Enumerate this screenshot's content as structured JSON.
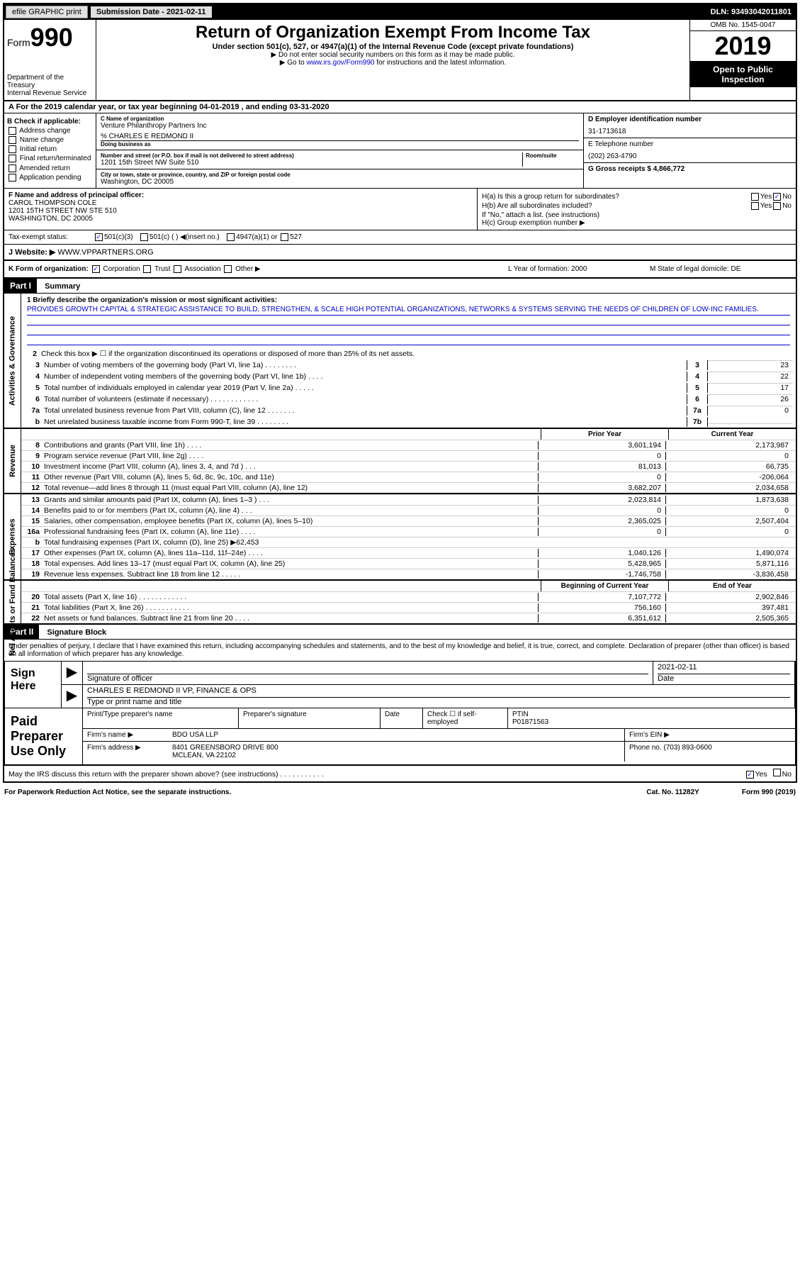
{
  "top_bar": {
    "efile": "efile GRAPHIC print",
    "submission_label": "Submission Date - 2021-02-11",
    "dln": "DLN: 93493042011801"
  },
  "header": {
    "form_label": "Form",
    "form_num": "990",
    "dept": "Department of the Treasury",
    "irs": "Internal Revenue Service",
    "title": "Return of Organization Exempt From Income Tax",
    "subtitle": "Under section 501(c), 527, or 4947(a)(1) of the Internal Revenue Code (except private foundations)",
    "note1": "▶ Do not enter social security numbers on this form as it may be made public.",
    "note2_pre": "▶ Go to ",
    "note2_link": "www.irs.gov/Form990",
    "note2_post": " for instructions and the latest information.",
    "omb": "OMB No. 1545-0047",
    "year": "2019",
    "open": "Open to Public Inspection"
  },
  "line_a": "A For the 2019 calendar year, or tax year beginning 04-01-2019   , and ending 03-31-2020",
  "box_b": {
    "label": "B Check if applicable:",
    "items": [
      "Address change",
      "Name change",
      "Initial return",
      "Final return/terminated",
      "Amended return",
      "Application pending"
    ]
  },
  "box_c": {
    "label_name": "C Name of organization",
    "org_name": "Venture Philanthropy Partners Inc",
    "care_of": "% CHARLES E REDMOND II",
    "dba_label": "Doing business as",
    "addr_label": "Number and street (or P.O. box if mail is not delivered to street address)",
    "room_label": "Room/suite",
    "address": "1201 15th Street NW Suite 510",
    "city_label": "City or town, state or province, country, and ZIP or foreign postal code",
    "city": "Washington, DC  20005"
  },
  "box_d": {
    "label": "D Employer identification number",
    "value": "31-1713618"
  },
  "box_e": {
    "label": "E Telephone number",
    "value": "(202) 263-4790"
  },
  "box_g": {
    "label": "G Gross receipts $ 4,866,772"
  },
  "box_f": {
    "label": "F  Name and address of principal officer:",
    "name": "CAROL THOMPSON COLE",
    "addr1": "1201 15TH STREET NW STE 510",
    "addr2": "WASHINGTON, DC  20005"
  },
  "box_h": {
    "ha": "H(a)  Is this a group return for subordinates?",
    "hb": "H(b)  Are all subordinates included?",
    "hb_note": "If \"No,\" attach a list. (see instructions)",
    "hc": "H(c)  Group exemption number ▶",
    "yes": "Yes",
    "no": "No"
  },
  "tax_exempt": {
    "label": "Tax-exempt status:",
    "opt1": "501(c)(3)",
    "opt2": "501(c) (  ) ◀(insert no.)",
    "opt3": "4947(a)(1) or",
    "opt4": "527"
  },
  "website": {
    "label": "J    Website: ▶",
    "value": "WWW.VPPARTNERS.ORG"
  },
  "klm": {
    "k": "K Form of organization:",
    "k_opts": [
      "Corporation",
      "Trust",
      "Association",
      "Other ▶"
    ],
    "l": "L Year of formation: 2000",
    "m": "M State of legal domicile: DE"
  },
  "part1": {
    "header": "Part I",
    "title": "Summary",
    "line1_label": "1  Briefly describe the organization's mission or most significant activities:",
    "line1_text": "PROVIDES GROWTH CAPITAL & STRATEGIC ASSISTANCE TO BUILD, STRENGTHEN, & SCALE HIGH POTENTIAL ORGANIZATIONS, NETWORKS & SYSTEMS SERVING THE NEEDS OF CHILDREN OF LOW-INC FAMILIES.",
    "line2": "Check this box ▶ ☐ if the organization discontinued its operations or disposed of more than 25% of its net assets.",
    "side_gov": "Activities & Governance",
    "side_rev": "Revenue",
    "side_exp": "Expenses",
    "side_net": "Net Assets or Fund Balances",
    "gov_lines": [
      {
        "n": "3",
        "t": "Number of voting members of the governing body (Part VI, line 1a)  .  .  .  .  .  .  .  .",
        "b": "3",
        "v": "23"
      },
      {
        "n": "4",
        "t": "Number of independent voting members of the governing body (Part VI, line 1b)  .  .  .  .",
        "b": "4",
        "v": "22"
      },
      {
        "n": "5",
        "t": "Total number of individuals employed in calendar year 2019 (Part V, line 2a)  .  .  .  .  .",
        "b": "5",
        "v": "17"
      },
      {
        "n": "6",
        "t": "Total number of volunteers (estimate if necessary)   .  .  .  .  .  .  .  .  .  .  .  .",
        "b": "6",
        "v": "26"
      },
      {
        "n": "7a",
        "t": "Total unrelated business revenue from Part VIII, column (C), line 12  .  .  .  .  .  .  .",
        "b": "7a",
        "v": "0"
      },
      {
        "n": "b",
        "t": "Net unrelated business taxable income from Form 990-T, line 39  .  .  .  .  .  .  .  .",
        "b": "7b",
        "v": ""
      }
    ],
    "col_prior": "Prior Year",
    "col_curr": "Current Year",
    "rev_lines": [
      {
        "n": "8",
        "t": "Contributions and grants (Part VIII, line 1h)  .  .  .  .",
        "p": "3,601,194",
        "c": "2,173,987"
      },
      {
        "n": "9",
        "t": "Program service revenue (Part VIII, line 2g)  .  .  .  .",
        "p": "0",
        "c": "0"
      },
      {
        "n": "10",
        "t": "Investment income (Part VIII, column (A), lines 3, 4, and 7d )  .  .  .",
        "p": "81,013",
        "c": "66,735"
      },
      {
        "n": "11",
        "t": "Other revenue (Part VIII, column (A), lines 5, 6d, 8c, 9c, 10c, and 11e)",
        "p": "0",
        "c": "-206,064"
      },
      {
        "n": "12",
        "t": "Total revenue—add lines 8 through 11 (must equal Part VIII, column (A), line 12)",
        "p": "3,682,207",
        "c": "2,034,658"
      }
    ],
    "exp_lines": [
      {
        "n": "13",
        "t": "Grants and similar amounts paid (Part IX, column (A), lines 1–3 )  .  .  .",
        "p": "2,023,814",
        "c": "1,873,638"
      },
      {
        "n": "14",
        "t": "Benefits paid to or for members (Part IX, column (A), line 4)  .  .  .",
        "p": "0",
        "c": "0"
      },
      {
        "n": "15",
        "t": "Salaries, other compensation, employee benefits (Part IX, column (A), lines 5–10)",
        "p": "2,365,025",
        "c": "2,507,404"
      },
      {
        "n": "16a",
        "t": "Professional fundraising fees (Part IX, column (A), line 11e)  .  .  .  .",
        "p": "0",
        "c": "0"
      },
      {
        "n": "b",
        "t": "Total fundraising expenses (Part IX, column (D), line 25) ▶62,453",
        "p": "",
        "c": "",
        "shaded": true
      },
      {
        "n": "17",
        "t": "Other expenses (Part IX, column (A), lines 11a–11d, 11f–24e)  .  .  .  .",
        "p": "1,040,126",
        "c": "1,490,074"
      },
      {
        "n": "18",
        "t": "Total expenses. Add lines 13–17 (must equal Part IX, column (A), line 25)",
        "p": "5,428,965",
        "c": "5,871,116"
      },
      {
        "n": "19",
        "t": "Revenue less expenses. Subtract line 18 from line 12  .  .  .  .  .",
        "p": "-1,746,758",
        "c": "-3,836,458"
      }
    ],
    "col_begin": "Beginning of Current Year",
    "col_end": "End of Year",
    "net_lines": [
      {
        "n": "20",
        "t": "Total assets (Part X, line 16)  .  .  .  .  .  .  .  .  .  .  .  .",
        "p": "7,107,772",
        "c": "2,902,846"
      },
      {
        "n": "21",
        "t": "Total liabilities (Part X, line 26)  .  .  .  .  .  .  .  .  .  .  .",
        "p": "756,160",
        "c": "397,481"
      },
      {
        "n": "22",
        "t": "Net assets or fund balances. Subtract line 21 from line 20  .  .  .  .",
        "p": "6,351,612",
        "c": "2,505,365"
      }
    ]
  },
  "part2": {
    "header": "Part II",
    "title": "Signature Block",
    "declaration": "Under penalties of perjury, I declare that I have examined this return, including accompanying schedules and statements, and to the best of my knowledge and belief, it is true, correct, and complete. Declaration of preparer (other than officer) is based on all information of which preparer has any knowledge.",
    "sign_here": "Sign Here",
    "sig_officer": "Signature of officer",
    "sig_date": "2021-02-11",
    "date_label": "Date",
    "officer_name": "CHARLES E REDMOND II VP, FINANCE & OPS",
    "type_label": "Type or print name and title",
    "paid_prep": "Paid Preparer Use Only",
    "prep_name_label": "Print/Type preparer's name",
    "prep_sig_label": "Preparer's signature",
    "prep_date_label": "Date",
    "check_if": "Check ☐ if self-employed",
    "ptin_label": "PTIN",
    "ptin": "P01871563",
    "firm_name_label": "Firm's name    ▶",
    "firm_name": "BDO USA LLP",
    "firm_ein_label": "Firm's EIN ▶",
    "firm_addr_label": "Firm's address ▶",
    "firm_addr": "8401 GREENSBORO DRIVE 800",
    "firm_city": "MCLEAN, VA  22102",
    "phone_label": "Phone no. (703) 893-0600",
    "discuss": "May the IRS discuss this return with the preparer shown above? (see instructions)  .  .  .  .  .  .  .  .  .  .  ."
  },
  "footer": {
    "paperwork": "For Paperwork Reduction Act Notice, see the separate instructions.",
    "cat": "Cat. No. 11282Y",
    "form": "Form 990 (2019)"
  }
}
